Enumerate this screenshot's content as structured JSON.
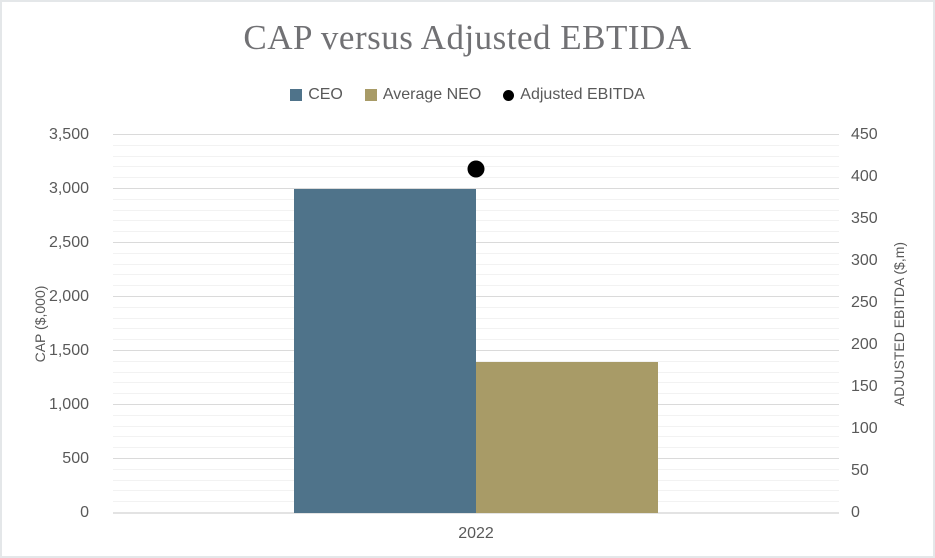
{
  "chart_data": {
    "type": "combo",
    "title": "CAP versus Adjusted EBTIDA",
    "categories": [
      "2022"
    ],
    "series": [
      {
        "name": "CEO",
        "type": "bar",
        "axis": "left",
        "color": "#4F738A",
        "values": [
          3000
        ]
      },
      {
        "name": "Average NEO",
        "type": "bar",
        "axis": "left",
        "color": "#A89B67",
        "values": [
          1400
        ]
      },
      {
        "name": "Adjusted EBITDA",
        "type": "scatter",
        "axis": "right",
        "color": "#000000",
        "values": [
          410
        ]
      }
    ],
    "left_axis": {
      "label": "CAP ($,000)",
      "min": 0,
      "max": 3500,
      "major_step": 500,
      "minor_step": 100,
      "tick_labels": [
        "0",
        "500",
        "1,000",
        "1,500",
        "2,000",
        "2,500",
        "3,000",
        "3,500"
      ]
    },
    "right_axis": {
      "label": "ADJUSTED EBITDA ($,m)",
      "min": 0,
      "max": 450,
      "major_step": 50,
      "tick_labels": [
        "0",
        "50",
        "100",
        "150",
        "200",
        "250",
        "300",
        "350",
        "400",
        "450"
      ]
    },
    "legend_position": "top",
    "grid": {
      "major": true,
      "minor": true
    }
  },
  "colors": {
    "background": "#FFFFFF",
    "border": "#E4E7E9",
    "title_text": "#717174",
    "axis_text": "#595959",
    "grid_major": "#DADADA",
    "grid_minor": "#F2F2F2",
    "axis_line": "#E3E3E3"
  }
}
